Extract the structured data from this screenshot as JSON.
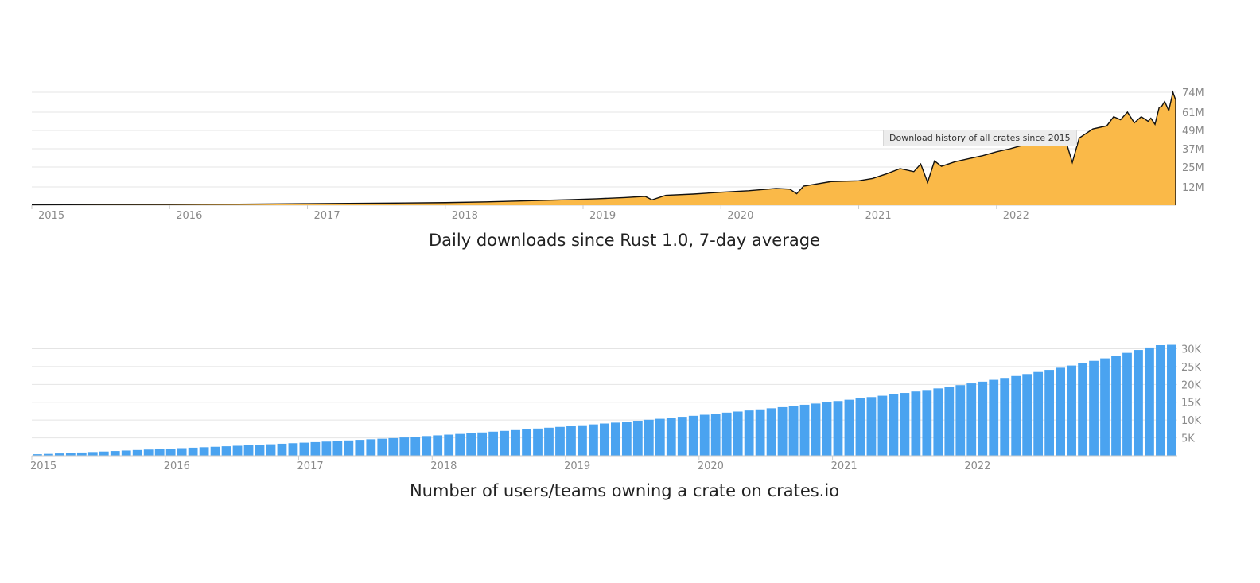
{
  "chart_data": [
    {
      "type": "area",
      "title": "Daily downloads since Rust 1.0, 7-day average",
      "tooltip": "Download history of all crates since 2015",
      "x_tick_labels": [
        "2015",
        "2016",
        "2017",
        "2018",
        "2019",
        "2020",
        "2021",
        "2022"
      ],
      "y_tick_labels": [
        "12M",
        "25M",
        "37M",
        "49M",
        "61M",
        "74M"
      ],
      "y_ticks": [
        12,
        25,
        37,
        49,
        61,
        74
      ],
      "y_unit": "millions",
      "ylim": [
        0,
        74
      ],
      "xlim": [
        2015.0,
        2023.3
      ],
      "grid": true,
      "fill_color": "#fab948",
      "line_color": "#111111",
      "x": [
        2015.0,
        2015.5,
        2016.0,
        2016.5,
        2017.0,
        2017.5,
        2018.0,
        2018.3,
        2018.6,
        2018.9,
        2019.1,
        2019.3,
        2019.45,
        2019.5,
        2019.6,
        2019.8,
        2020.0,
        2020.2,
        2020.4,
        2020.5,
        2020.55,
        2020.6,
        2020.8,
        2021.0,
        2021.1,
        2021.2,
        2021.3,
        2021.4,
        2021.45,
        2021.5,
        2021.55,
        2021.6,
        2021.7,
        2021.8,
        2021.9,
        2022.0,
        2022.1,
        2022.2,
        2022.3,
        2022.4,
        2022.45,
        2022.5,
        2022.55,
        2022.6,
        2022.7,
        2022.8,
        2022.85,
        2022.9,
        2022.95,
        2023.0,
        2023.05,
        2023.1,
        2023.12,
        2023.15,
        2023.18,
        2023.2,
        2023.22,
        2023.25,
        2023.28,
        2023.3
      ],
      "values": [
        0.3,
        0.4,
        0.5,
        0.7,
        1.0,
        1.3,
        1.7,
        2.2,
        2.9,
        3.6,
        4.2,
        5.0,
        5.8,
        3.5,
        6.5,
        7.3,
        8.5,
        9.5,
        11.0,
        10.5,
        7.5,
        12.5,
        15.5,
        16.0,
        17.5,
        20.5,
        24.0,
        22.0,
        27.0,
        15.0,
        29.0,
        25.5,
        28.5,
        30.5,
        32.5,
        35.0,
        37.0,
        39.5,
        42.0,
        44.0,
        40.0,
        43.0,
        28.0,
        44.0,
        50.0,
        52.0,
        58.0,
        56.0,
        61.0,
        54.0,
        58.0,
        55.0,
        57.0,
        53.0,
        64.0,
        65.0,
        68.0,
        62.0,
        74.0,
        69.0
      ]
    },
    {
      "type": "bar",
      "title": "Number of users/teams owning a crate on crates.io",
      "x_tick_labels": [
        "2015",
        "2016",
        "2017",
        "2018",
        "2019",
        "2020",
        "2021",
        "2022"
      ],
      "y_tick_labels": [
        "5K",
        "10K",
        "15K",
        "20K",
        "25K",
        "30K"
      ],
      "y_ticks": [
        5000,
        10000,
        15000,
        20000,
        25000,
        30000
      ],
      "ylim": [
        0,
        31000
      ],
      "grid": true,
      "bar_color": "#4aa3f0",
      "start": "2015-01",
      "frequency": "monthly",
      "values": [
        420,
        520,
        650,
        780,
        910,
        1040,
        1180,
        1320,
        1460,
        1600,
        1730,
        1860,
        1990,
        2120,
        2250,
        2380,
        2510,
        2650,
        2790,
        2930,
        3070,
        3210,
        3360,
        3510,
        3660,
        3810,
        3960,
        4120,
        4280,
        4440,
        4600,
        4760,
        4930,
        5110,
        5300,
        5500,
        5700,
        5900,
        6100,
        6310,
        6520,
        6740,
        6960,
        7180,
        7400,
        7620,
        7850,
        8080,
        8310,
        8540,
        8780,
        9030,
        9280,
        9540,
        9810,
        10080,
        10350,
        10630,
        10910,
        11190,
        11480,
        11780,
        12080,
        12380,
        12680,
        12990,
        13300,
        13620,
        13950,
        14290,
        14630,
        14980,
        15330,
        15690,
        16060,
        16440,
        16820,
        17210,
        17610,
        18020,
        18440,
        18880,
        19330,
        19800,
        20280,
        20770,
        21280,
        21810,
        22350,
        22910,
        23480,
        24070,
        24670,
        25290,
        25930,
        26600,
        27300,
        28050,
        28850,
        29650,
        30350,
        31000,
        31100
      ]
    }
  ]
}
